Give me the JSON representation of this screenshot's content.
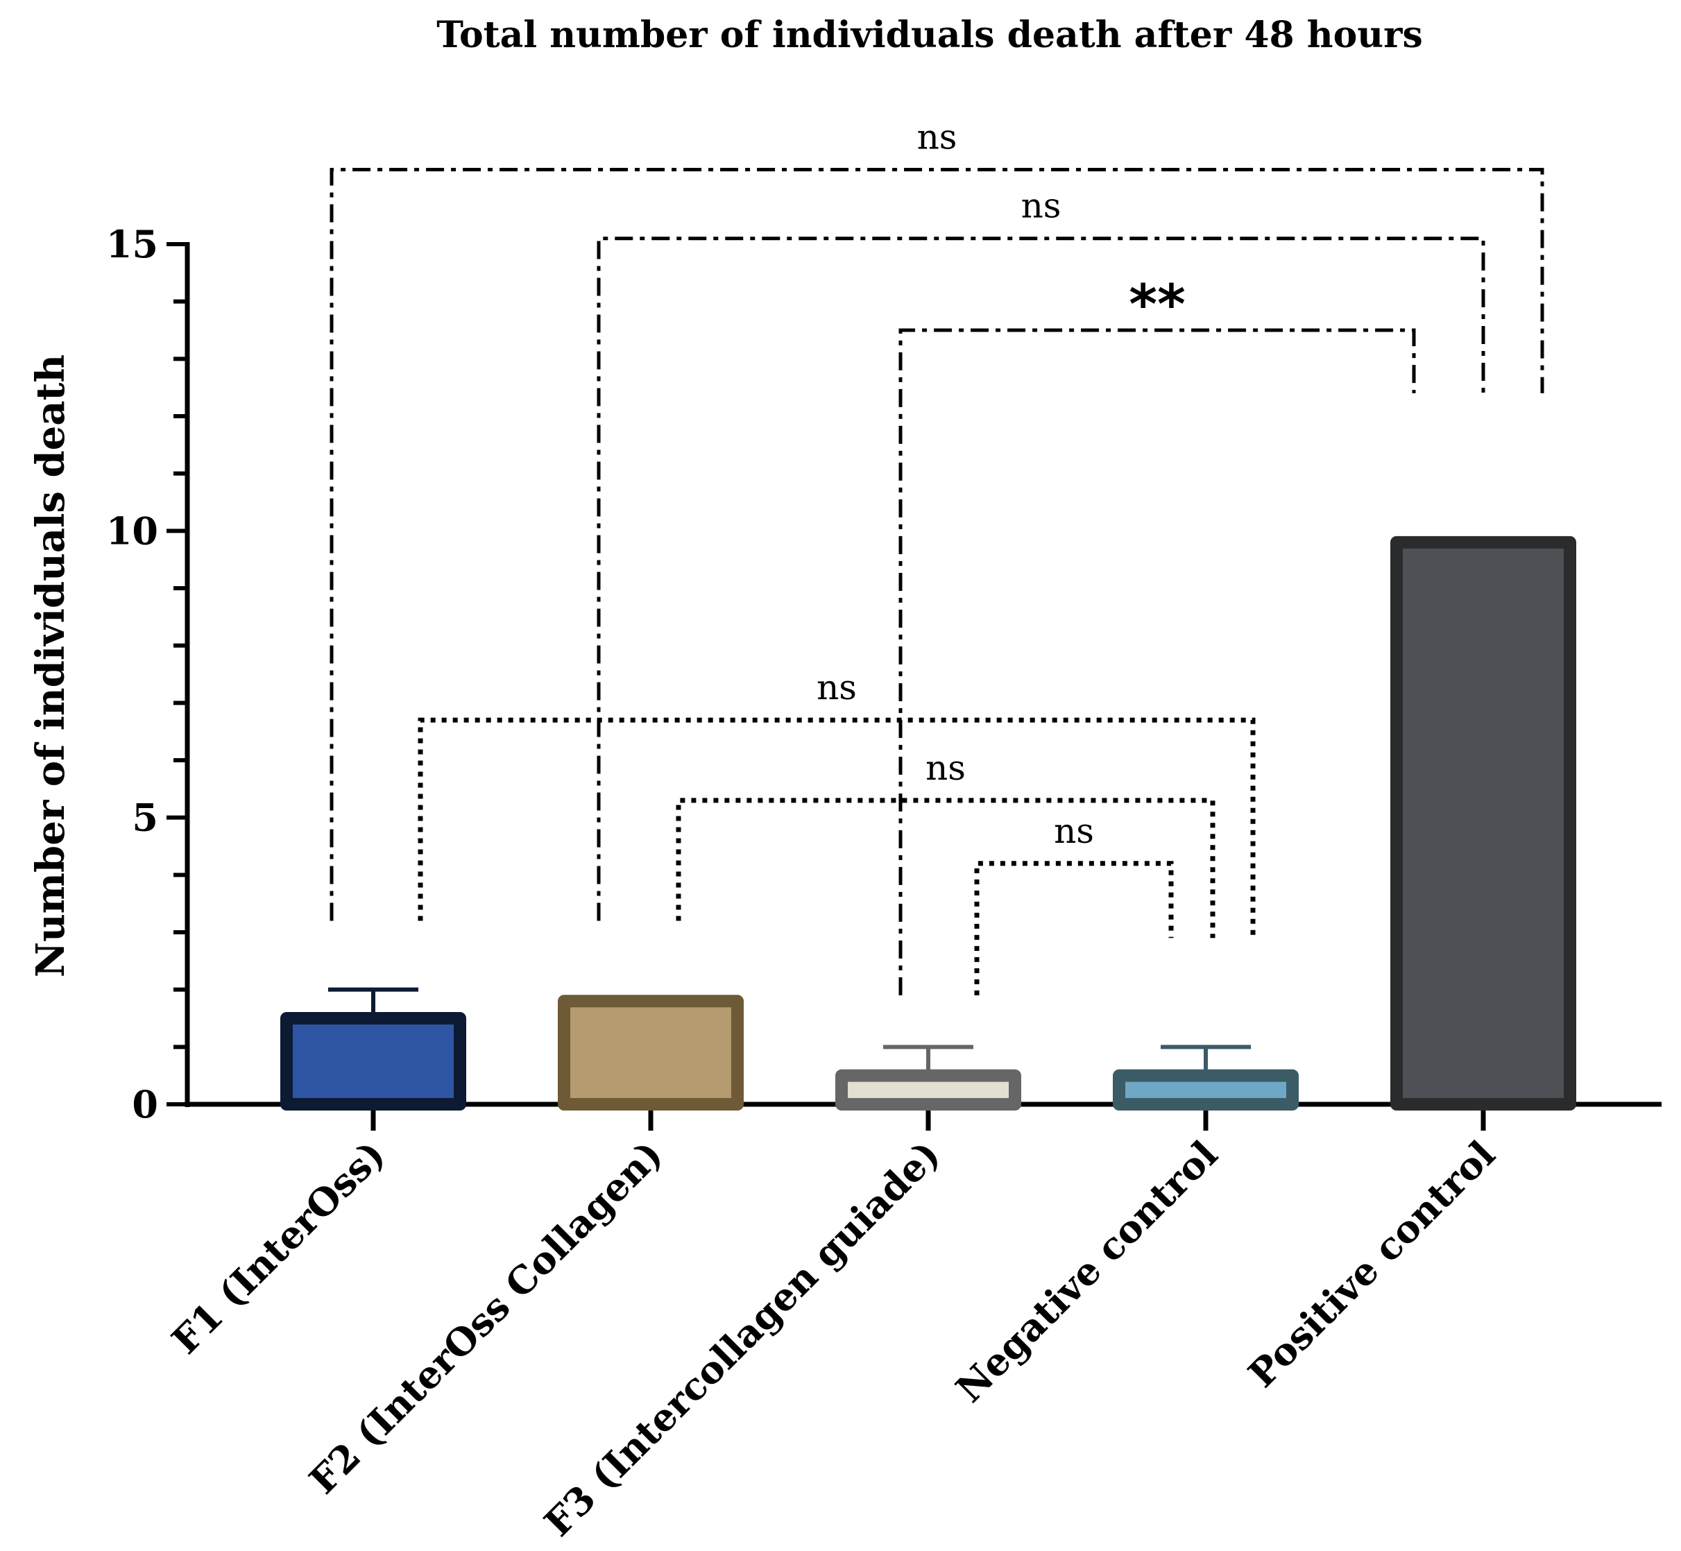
{
  "chart_data": {
    "type": "bar",
    "title": "Total number of individuals death after 48 hours",
    "xlabel": "",
    "ylabel": "Number of individuals death",
    "ylim": [
      0,
      15
    ],
    "yticks": [
      "0",
      "5",
      "10",
      "15"
    ],
    "categories": [
      "F1 (InterOss)",
      "F2 (InterOss Collagen)",
      "F3 (Intercollagen guiade)",
      "Negative control",
      "Positive control"
    ],
    "values": [
      1.5,
      1.8,
      0.5,
      0.5,
      9.8
    ],
    "error_upper": [
      2.0,
      null,
      1.0,
      1.0,
      null
    ],
    "colors": {
      "fill": [
        "#2e55a3",
        "#b59b70",
        "#e2dfd3",
        "#6ea8c6",
        "#4e5055"
      ],
      "stroke": [
        "#0d1a33",
        "#6e5a36",
        "#666666",
        "#3b5b66",
        "#2a2b2d"
      ]
    },
    "comparisons": [
      {
        "from": 0,
        "to": 4,
        "label": "ns",
        "style": "dashdot",
        "level": 16.3,
        "left_end": 3.2,
        "right_end": 12.4
      },
      {
        "from": 1,
        "to": 4,
        "label": "ns",
        "style": "dashdot",
        "level": 15.1,
        "left_end": 3.2,
        "right_end": 12.4
      },
      {
        "from": 2,
        "to": 4,
        "label": "**",
        "style": "dashdot",
        "level": 13.5,
        "left_end": 1.9,
        "right_end": 12.4
      },
      {
        "from": 0,
        "to": 3,
        "label": "ns",
        "style": "dotted",
        "level": 6.7,
        "left_end": 3.2,
        "right_end": 2.9
      },
      {
        "from": 1,
        "to": 3,
        "label": "ns",
        "style": "dotted",
        "level": 5.3,
        "left_end": 3.2,
        "right_end": 2.9
      },
      {
        "from": 2,
        "to": 3,
        "label": "ns",
        "style": "dotted",
        "level": 4.2,
        "left_end": 1.9,
        "right_end": 2.9
      }
    ]
  }
}
